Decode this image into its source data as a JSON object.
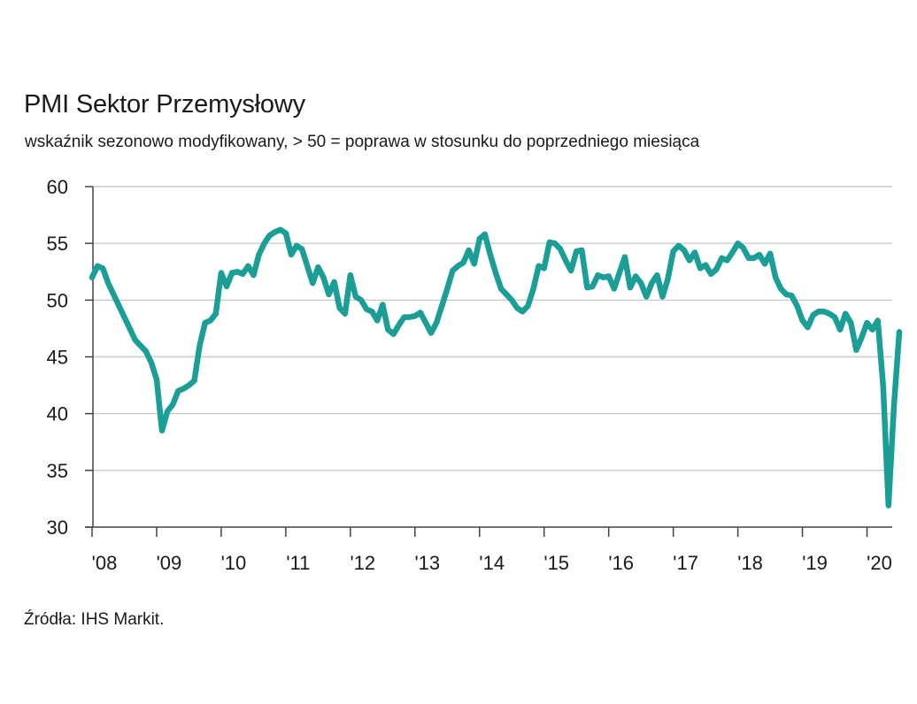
{
  "title": "PMI Sektor Przemysłowy",
  "subtitle": "wskaźnik sezonowo modyfikowany, > 50 = poprawa w stosunku do poprzedniego miesiąca",
  "source": "Źródła: IHS Markit.",
  "colors": {
    "line": "#1a9e96",
    "grid": "#cccccc",
    "axis": "#444444"
  },
  "chart_data": {
    "type": "line",
    "title": "PMI Sektor Przemysłowy",
    "subtitle": "wskaźnik sezonowo modyfikowany, > 50 = poprawa w stosunku do poprzedniego miesiąca",
    "xlabel": "",
    "ylabel": "",
    "ylim": [
      30,
      60
    ],
    "yticks": [
      30,
      35,
      40,
      45,
      50,
      55,
      60
    ],
    "xtick_labels": [
      "'08",
      "'09",
      "'10",
      "'11",
      "'12",
      "'13",
      "'14",
      "'15",
      "'16",
      "'17",
      "'18",
      "'19",
      "'20"
    ],
    "grid": "horizontal",
    "legend": "none",
    "series": [
      {
        "name": "",
        "start": "2008-01",
        "frequency": "monthly",
        "values": [
          52.0,
          53.0,
          52.8,
          51.5,
          50.5,
          49.5,
          48.5,
          47.5,
          46.5,
          46.0,
          45.5,
          44.5,
          43.0,
          38.5,
          40.2,
          40.8,
          42.0,
          42.2,
          42.5,
          42.9,
          46.0,
          48.0,
          48.2,
          48.8,
          52.4,
          51.2,
          52.4,
          52.5,
          52.3,
          53.0,
          52.2,
          54.0,
          55.0,
          55.7,
          56.0,
          56.2,
          55.9,
          54.0,
          54.8,
          54.5,
          53.0,
          51.5,
          52.9,
          52.0,
          50.5,
          51.6,
          49.3,
          48.8,
          52.2,
          50.3,
          50.0,
          49.2,
          49.0,
          48.2,
          49.6,
          47.4,
          47.0,
          47.8,
          48.5,
          48.5,
          48.6,
          48.9,
          48.0,
          47.1,
          48.0,
          49.5,
          51.0,
          52.6,
          53.0,
          53.3,
          54.4,
          53.2,
          55.4,
          55.8,
          54.0,
          52.4,
          51.0,
          50.5,
          50.0,
          49.3,
          49.0,
          49.5,
          51.0,
          53.0,
          52.8,
          55.1,
          55.0,
          54.5,
          53.5,
          52.6,
          54.3,
          54.4,
          51.1,
          51.2,
          52.2,
          52.0,
          52.1,
          51.0,
          52.4,
          53.8,
          51.1,
          52.1,
          51.5,
          50.3,
          51.5,
          52.2,
          50.3,
          51.9,
          54.3,
          54.8,
          54.4,
          53.5,
          54.2,
          52.8,
          53.1,
          52.3,
          52.7,
          53.7,
          53.5,
          54.2,
          55.0,
          54.6,
          53.7,
          53.7,
          54.0,
          53.2,
          54.1,
          52.0,
          51.0,
          50.5,
          50.4,
          49.5,
          48.2,
          47.6,
          48.7,
          49.0,
          49.0,
          48.8,
          48.5,
          47.4,
          48.8,
          48.0,
          45.6,
          46.7,
          48.0,
          47.4,
          48.2,
          42.4,
          31.9,
          40.6,
          47.2
        ]
      }
    ]
  }
}
